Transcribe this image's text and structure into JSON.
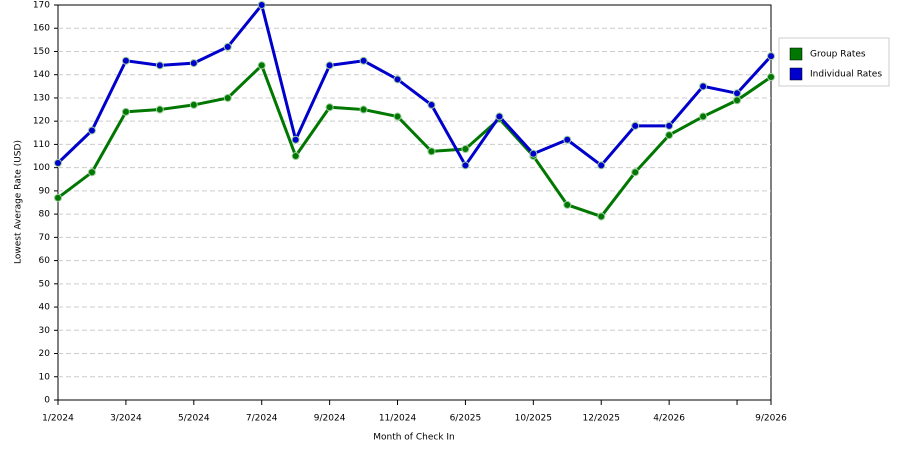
{
  "chart_data": {
    "type": "line",
    "x_label": "Month of Check In",
    "y_label": "Lowest Average Rate (USD)",
    "categories": [
      "1/2024",
      null,
      "3/2024",
      null,
      "5/2024",
      null,
      "7/2024",
      null,
      "9/2024",
      null,
      "11/2024",
      null,
      "6/2025",
      null,
      "10/2025",
      null,
      "12/2025",
      null,
      "4/2026",
      null,
      null,
      "9/2026"
    ],
    "series": [
      {
        "name": "Group Rates",
        "color": "#007700",
        "values": [
          87,
          98,
          124,
          125,
          127,
          130,
          144,
          105,
          126,
          125,
          122,
          107,
          108,
          121,
          105,
          84,
          79,
          98,
          114,
          122,
          129,
          139
        ]
      },
      {
        "name": "Individual Rates",
        "color": "#0000cc",
        "values": [
          102,
          116,
          146,
          144,
          145,
          152,
          170,
          112,
          144,
          146,
          138,
          127,
          101,
          122,
          106,
          112,
          101,
          118,
          118,
          135,
          132,
          148
        ]
      }
    ],
    "ylim": [
      0,
      170
    ],
    "yticks": [
      0,
      10,
      20,
      30,
      40,
      50,
      60,
      70,
      80,
      90,
      100,
      110,
      120,
      130,
      140,
      150,
      160,
      170
    ],
    "grid": true,
    "legend": "right"
  }
}
